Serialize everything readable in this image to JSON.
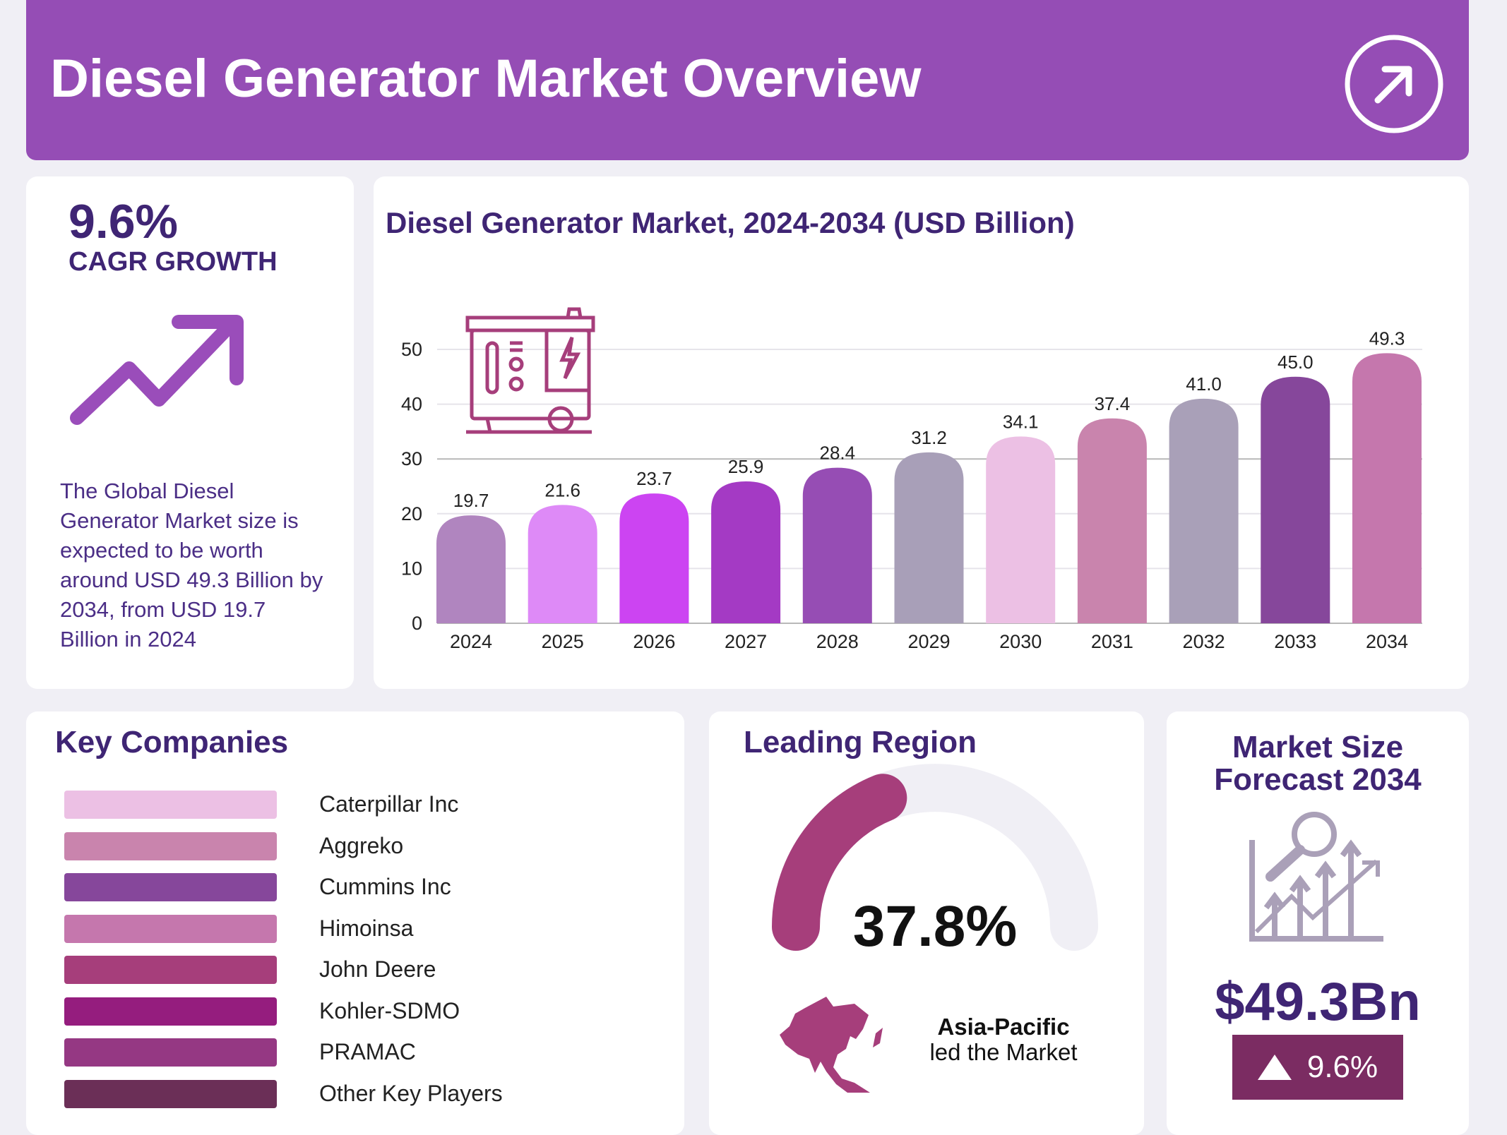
{
  "header": {
    "title": "Diesel Generator Market Overview",
    "icon": "arrow-up-right-circle-icon"
  },
  "cagr": {
    "value": "9.6%",
    "label": "CAGR GROWTH",
    "icon": "trend-up-arrow-icon",
    "description": [
      "The Global Diesel",
      "Generator Market size is",
      "expected to be worth",
      "around USD 49.3 Billion by",
      "2034, from USD 19.7",
      "Billion in 2024"
    ]
  },
  "chart_data": {
    "type": "bar",
    "title": "Diesel Generator Market, 2024-2034 (USD Billion)",
    "categories": [
      "2024",
      "2025",
      "2026",
      "2027",
      "2028",
      "2029",
      "2030",
      "2031",
      "2032",
      "2033",
      "2034"
    ],
    "values": [
      19.7,
      21.6,
      23.7,
      25.9,
      28.4,
      31.2,
      34.1,
      37.4,
      41.0,
      45.0,
      49.3
    ],
    "value_labels": [
      "19.7",
      "21.6",
      "23.7",
      "25.9",
      "28.4",
      "31.2",
      "34.1",
      "37.4",
      "41.0",
      "45.0",
      "49.3"
    ],
    "colors": [
      "#b085bf",
      "#de8af7",
      "#cc44f2",
      "#a43ac4",
      "#964db4",
      "#a89fb8",
      "#ecc0e4",
      "#c984ad",
      "#a9a0b8",
      "#86479b",
      "#c577ad"
    ],
    "yticks": [
      "0",
      "10",
      "20",
      "30",
      "40",
      "50"
    ],
    "ylim": [
      0,
      50
    ],
    "grid": true,
    "xlabel": "",
    "ylabel": "",
    "icon": "generator-icon"
  },
  "companies": {
    "title": "Key Companies",
    "items": [
      {
        "name": "Caterpillar Inc",
        "color": "#ecc0e4"
      },
      {
        "name": "Aggreko",
        "color": "#c984ad"
      },
      {
        "name": "Cummins Inc",
        "color": "#86479b"
      },
      {
        "name": "Himoinsa",
        "color": "#c577ad"
      },
      {
        "name": "John Deere",
        "color": "#a63e7b"
      },
      {
        "name": "Kohler-SDMO",
        "color": "#951d7e"
      },
      {
        "name": "PRAMAC",
        "color": "#953883"
      },
      {
        "name": "Other Key Players",
        "color": "#6b2f57"
      }
    ]
  },
  "region": {
    "title": "Leading Region",
    "share": "37.8%",
    "share_value": 37.8,
    "name": "Asia-Pacific",
    "subtitle": "led the Market",
    "color": "#a63e7b"
  },
  "forecast": {
    "title_line1": "Market Size",
    "title_line2": "Forecast 2034",
    "value": "$49.3Bn",
    "growth": "9.6%",
    "badge_color": "#7b2c62"
  }
}
